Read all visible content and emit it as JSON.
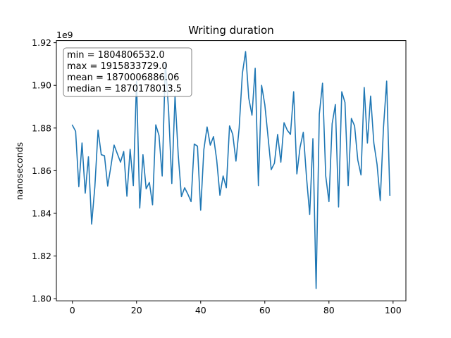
{
  "chart_data": {
    "type": "line",
    "title": "Writing duration",
    "xlabel": "",
    "ylabel": "nanoseconds",
    "y_offset_label": "1e9",
    "xlim": [
      -5,
      104
    ],
    "ylim": [
      1.799,
      1.921
    ],
    "x_ticks": [
      0,
      20,
      40,
      60,
      80,
      100
    ],
    "x_tick_labels": [
      "0",
      "20",
      "40",
      "60",
      "80",
      "100"
    ],
    "y_ticks": [
      1.8,
      1.82,
      1.84,
      1.86,
      1.88,
      1.9,
      1.92
    ],
    "y_tick_labels": [
      "1.80",
      "1.82",
      "1.84",
      "1.86",
      "1.88",
      "1.90",
      "1.92"
    ],
    "grid": false,
    "line_color": "#1f77b4",
    "annotation": {
      "lines": [
        "min = 1804806532.0",
        "max = 1915833729.0",
        "mean = 1870006886.06",
        "median = 1870178013.5"
      ],
      "placement": "top-left"
    },
    "series": [
      {
        "x": [
          0,
          1,
          2,
          3,
          4,
          5,
          6,
          7,
          8,
          9,
          10,
          11,
          12,
          13,
          14,
          15,
          16,
          17,
          18,
          19,
          20,
          21,
          22,
          23,
          24,
          25,
          26,
          27,
          28,
          29,
          30,
          31,
          32,
          33,
          34,
          35,
          36,
          37,
          38,
          39,
          40,
          41,
          42,
          43,
          44,
          45,
          46,
          47,
          48,
          49,
          50,
          51,
          52,
          53,
          54,
          55,
          56,
          57,
          58,
          59,
          60,
          61,
          62,
          63,
          64,
          65,
          66,
          67,
          68,
          69,
          70,
          71,
          72,
          73,
          74,
          75,
          76,
          77,
          78,
          79,
          80,
          81,
          82,
          83,
          84,
          85,
          86,
          87,
          88,
          89,
          90,
          91,
          92,
          93,
          94,
          95,
          96,
          97,
          98,
          99
        ],
        "values": [
          1.8813,
          1.8785,
          1.8525,
          1.873,
          1.8495,
          1.8665,
          1.835,
          1.8525,
          1.879,
          1.8675,
          1.867,
          1.8528,
          1.862,
          1.872,
          1.868,
          1.864,
          1.869,
          1.848,
          1.87,
          1.853,
          1.902,
          1.8425,
          1.8675,
          1.8515,
          1.8545,
          1.844,
          1.8815,
          1.8765,
          1.8575,
          1.911,
          1.888,
          1.854,
          1.895,
          1.8675,
          1.8478,
          1.852,
          1.849,
          1.8455,
          1.8725,
          1.8715,
          1.8415,
          1.87,
          1.8805,
          1.872,
          1.876,
          1.865,
          1.8485,
          1.8575,
          1.852,
          1.881,
          1.877,
          1.8645,
          1.88,
          1.9055,
          1.9158,
          1.894,
          1.886,
          1.908,
          1.853,
          1.9,
          1.891,
          1.876,
          1.8605,
          1.8635,
          1.877,
          1.864,
          1.8825,
          1.879,
          1.877,
          1.897,
          1.8585,
          1.871,
          1.878,
          1.857,
          1.8395,
          1.875,
          1.8048,
          1.8865,
          1.901,
          1.8575,
          1.8455,
          1.882,
          1.891,
          1.843,
          1.897,
          1.892,
          1.853,
          1.8845,
          1.881,
          1.865,
          1.858,
          1.899,
          1.873,
          1.895,
          1.873,
          1.863,
          1.846,
          1.88,
          1.902,
          1.8485
        ]
      }
    ]
  }
}
